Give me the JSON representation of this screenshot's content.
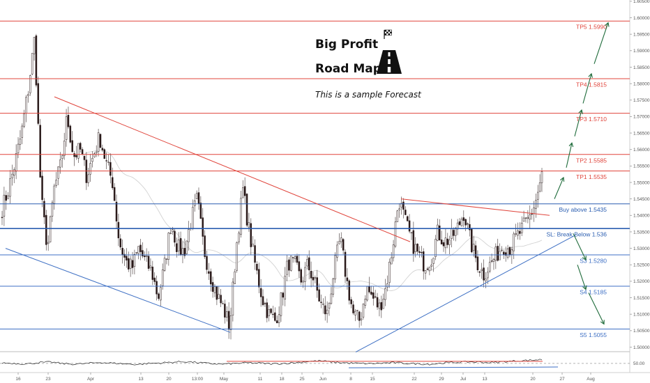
{
  "header": {
    "title_line1": "Big Profit",
    "title_line2": "Road Map",
    "subtitle": "This is a sample Forecast",
    "flag_icon": "checkered-flag-icon",
    "road_icon": "road-icon"
  },
  "colors": {
    "tp_line": "#e0443b",
    "support_line": "#3d6fc4",
    "buy_line": "#2a5db0",
    "candle": "#2a1a1a",
    "forecast_arrow": "#1e6b3a",
    "rsi_line": "#222222"
  },
  "chart_data": {
    "type": "candlestick",
    "ylim": [
      1.4975,
      1.6055
    ],
    "y_ticks": [
      {
        "value": 1.605,
        "label": "1.60500"
      },
      {
        "value": 1.6,
        "label": "1.60000"
      },
      {
        "value": 1.595,
        "label": "1.59500"
      },
      {
        "value": 1.59,
        "label": "1.59000"
      },
      {
        "value": 1.585,
        "label": "1.58500"
      },
      {
        "value": 1.58,
        "label": "1.58000"
      },
      {
        "value": 1.575,
        "label": "1.57500"
      },
      {
        "value": 1.57,
        "label": "1.57000"
      },
      {
        "value": 1.565,
        "label": "1.56500"
      },
      {
        "value": 1.56,
        "label": "1.56000"
      },
      {
        "value": 1.555,
        "label": "1.55500"
      },
      {
        "value": 1.55,
        "label": "1.55000"
      },
      {
        "value": 1.545,
        "label": "1.54500"
      },
      {
        "value": 1.54,
        "label": "1.54000"
      },
      {
        "value": 1.535,
        "label": "1.53500"
      },
      {
        "value": 1.53,
        "label": "1.53000"
      },
      {
        "value": 1.525,
        "label": "1.52500"
      },
      {
        "value": 1.52,
        "label": "1.52000"
      },
      {
        "value": 1.515,
        "label": "1.51500"
      },
      {
        "value": 1.51,
        "label": "1.51000"
      },
      {
        "value": 1.505,
        "label": "1.50500"
      },
      {
        "value": 1.5,
        "label": "1.50000"
      }
    ],
    "x_ticks": [
      "16",
      "23",
      "Apr",
      "13",
      "20",
      "13:00",
      "May",
      "11",
      "18",
      "25",
      "Jun",
      "8",
      "15",
      "22",
      "29",
      "Jul",
      "13",
      "20",
      "27",
      "Aug"
    ],
    "levels": [
      {
        "kind": "tp",
        "label": "TP5 1.5990",
        "value": 1.599
      },
      {
        "kind": "tp",
        "label": "TP4 1.5815",
        "value": 1.5815
      },
      {
        "kind": "tp",
        "label": "TP3 1.5710",
        "value": 1.571
      },
      {
        "kind": "tp",
        "label": "TP2 1.5585",
        "value": 1.5585
      },
      {
        "kind": "tp",
        "label": "TP1 1.5535",
        "value": 1.5535
      },
      {
        "kind": "entry",
        "label": "Buy above 1.5435",
        "value": 1.5435
      },
      {
        "kind": "stop",
        "label": "SL: Break Below 1.536",
        "value": 1.536
      },
      {
        "kind": "support",
        "label": "S3 1.5280",
        "value": 1.528
      },
      {
        "kind": "support",
        "label": "S4 1.5185",
        "value": 1.5185
      },
      {
        "kind": "support",
        "label": "S5 1.5055",
        "value": 1.5055
      }
    ],
    "price_path": [
      1.542,
      1.548,
      1.556,
      1.565,
      1.578,
      1.594,
      1.545,
      1.53,
      1.548,
      1.555,
      1.57,
      1.558,
      1.56,
      1.552,
      1.558,
      1.564,
      1.556,
      1.55,
      1.532,
      1.526,
      1.524,
      1.53,
      1.526,
      1.523,
      1.515,
      1.525,
      1.538,
      1.53,
      1.529,
      1.538,
      1.545,
      1.53,
      1.522,
      1.516,
      1.512,
      1.506,
      1.53,
      1.548,
      1.535,
      1.524,
      1.515,
      1.51,
      1.508,
      1.515,
      1.526,
      1.525,
      1.52,
      1.525,
      1.52,
      1.513,
      1.51,
      1.523,
      1.533,
      1.52,
      1.51,
      1.508,
      1.518,
      1.515,
      1.512,
      1.518,
      1.53,
      1.545,
      1.538,
      1.532,
      1.528,
      1.525,
      1.527,
      1.535,
      1.532,
      1.533,
      1.536,
      1.541,
      1.532,
      1.526,
      1.522,
      1.525,
      1.528,
      1.531,
      1.53,
      1.533,
      1.536,
      1.539,
      1.544,
      1.552
    ],
    "trendlines": [
      {
        "name": "descending-resistance",
        "color": "tp",
        "from": {
          "x": 78,
          "y": 1.576
        },
        "to": {
          "x": 588,
          "y": 1.532
        }
      },
      {
        "name": "flag-top",
        "color": "tp",
        "from": {
          "x": 575,
          "y": 1.545
        },
        "to": {
          "x": 788,
          "y": 1.54
        }
      },
      {
        "name": "descending-support",
        "color": "support",
        "from": {
          "x": 8,
          "y": 1.53
        },
        "to": {
          "x": 330,
          "y": 1.5045
        }
      },
      {
        "name": "ascending-support",
        "color": "support",
        "from": {
          "x": 510,
          "y": 1.4985
        },
        "to": {
          "x": 825,
          "y": 1.534
        }
      }
    ],
    "forecast_path": [
      {
        "x": 795,
        "y": 1.545
      },
      {
        "x": 808,
        "y": 1.5515
      },
      {
        "x": 812,
        "y": 1.5545
      },
      {
        "x": 820,
        "y": 1.562
      },
      {
        "x": 824,
        "y": 1.564
      },
      {
        "x": 834,
        "y": 1.572
      },
      {
        "x": 836,
        "y": 1.574
      },
      {
        "x": 848,
        "y": 1.583
      },
      {
        "x": 852,
        "y": 1.586
      },
      {
        "x": 872,
        "y": 1.5985
      },
      {
        "x": 822,
        "y": 1.5345
      },
      {
        "x": 840,
        "y": 1.5265
      },
      {
        "x": 828,
        "y": 1.525
      },
      {
        "x": 840,
        "y": 1.5175
      },
      {
        "x": 844,
        "y": 1.5165
      },
      {
        "x": 866,
        "y": 1.507
      }
    ],
    "rsi": {
      "label": "50.00",
      "values": [
        52,
        50,
        48,
        53,
        55,
        49,
        47,
        50,
        54,
        51,
        48,
        46,
        50,
        52,
        55,
        57,
        53,
        49,
        47,
        50,
        52,
        51,
        48,
        50,
        53,
        58,
        60,
        55,
        52,
        50,
        49,
        51,
        53,
        50,
        48,
        47,
        52,
        54,
        56,
        55,
        53,
        57,
        60,
        62,
        65
      ]
    }
  }
}
